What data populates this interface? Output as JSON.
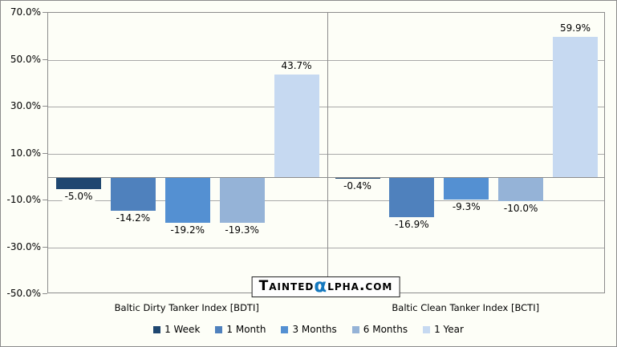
{
  "chart_data": {
    "type": "bar",
    "title": "",
    "categories": [
      "Baltic Dirty Tanker Index [BDTI]",
      "Baltic Clean Tanker Index [BCTI]"
    ],
    "series": [
      {
        "name": "1 Week",
        "color": "#1F4770",
        "pattern": "solid",
        "values": [
          -5.0,
          -0.4
        ],
        "labels": [
          "-5.0%",
          "-0.4%"
        ]
      },
      {
        "name": "1 Month",
        "color": "#4F81BD",
        "pattern": "solid",
        "values": [
          -14.2,
          -16.9
        ],
        "labels": [
          "-14.2%",
          "-16.9%"
        ]
      },
      {
        "name": "3 Months",
        "color": "#5490D2",
        "pattern": "solid",
        "values": [
          -19.2,
          -9.3
        ],
        "labels": [
          "-19.2%",
          "-9.3%"
        ]
      },
      {
        "name": "6 Months",
        "color": "#95B3D7",
        "pattern": "solid",
        "values": [
          -19.3,
          -10.0
        ],
        "labels": [
          "-19.3%",
          "-10.0%"
        ]
      },
      {
        "name": "1 Year",
        "color": "#C6D9F1",
        "pattern": "dots",
        "values": [
          43.7,
          59.9
        ],
        "labels": [
          "43.7%",
          "59.9%"
        ]
      }
    ],
    "ylim": [
      -50,
      70
    ],
    "ytick_step": 20,
    "ytick_labels": [
      "70.0%",
      "50.0%",
      "30.0%",
      "10.0%",
      "-10.0%",
      "-30.0%",
      "-50.0%"
    ],
    "ytick_values": [
      70,
      50,
      30,
      10,
      -10,
      -30,
      -50
    ],
    "grid": true,
    "legend_position": "bottom",
    "xlabel": "",
    "ylabel": ""
  },
  "watermark": {
    "prefix": "Tainted",
    "alpha_glyph": "α",
    "suffix": "lpha.com",
    "alpha_color": "#1478BE"
  },
  "colors": {
    "background": "#FDFEF7",
    "gridline": "#A9A9A9",
    "axis": "#8C8C8C"
  }
}
